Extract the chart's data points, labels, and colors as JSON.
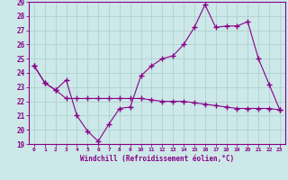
{
  "xlabel": "Windchill (Refroidissement éolien,°C)",
  "ylabel": "",
  "background_color": "#cce8e8",
  "grid_color": "#aacccc",
  "line_color": "#880088",
  "xlim": [
    -0.5,
    23.5
  ],
  "ylim": [
    19,
    29
  ],
  "yticks": [
    19,
    20,
    21,
    22,
    23,
    24,
    25,
    26,
    27,
    28,
    29
  ],
  "xticks": [
    0,
    1,
    2,
    3,
    4,
    5,
    6,
    7,
    8,
    9,
    10,
    11,
    12,
    13,
    14,
    15,
    16,
    17,
    18,
    19,
    20,
    21,
    22,
    23
  ],
  "line1_x": [
    0,
    1,
    2,
    3,
    4,
    5,
    6,
    7,
    8,
    9,
    10,
    11,
    12,
    13,
    14,
    15,
    16,
    17,
    18,
    19,
    20,
    21,
    22,
    23
  ],
  "line1_y": [
    24.5,
    23.3,
    22.8,
    22.2,
    22.2,
    22.2,
    22.2,
    22.2,
    22.2,
    22.2,
    22.2,
    22.1,
    22.0,
    22.0,
    22.0,
    21.9,
    21.8,
    21.7,
    21.6,
    21.5,
    21.5,
    21.5,
    21.5,
    21.4
  ],
  "line2_x": [
    0,
    1,
    2,
    3,
    4,
    5,
    6,
    7,
    8,
    9,
    10,
    11,
    12,
    13,
    14,
    15,
    16,
    17,
    18,
    19,
    20,
    21,
    22,
    23
  ],
  "line2_y": [
    24.5,
    23.3,
    22.8,
    23.5,
    21.0,
    19.9,
    19.2,
    20.4,
    21.5,
    21.6,
    23.8,
    24.5,
    25.0,
    25.2,
    26.0,
    27.2,
    28.8,
    27.2,
    27.3,
    27.3,
    27.6,
    25.0,
    23.2,
    21.4
  ]
}
